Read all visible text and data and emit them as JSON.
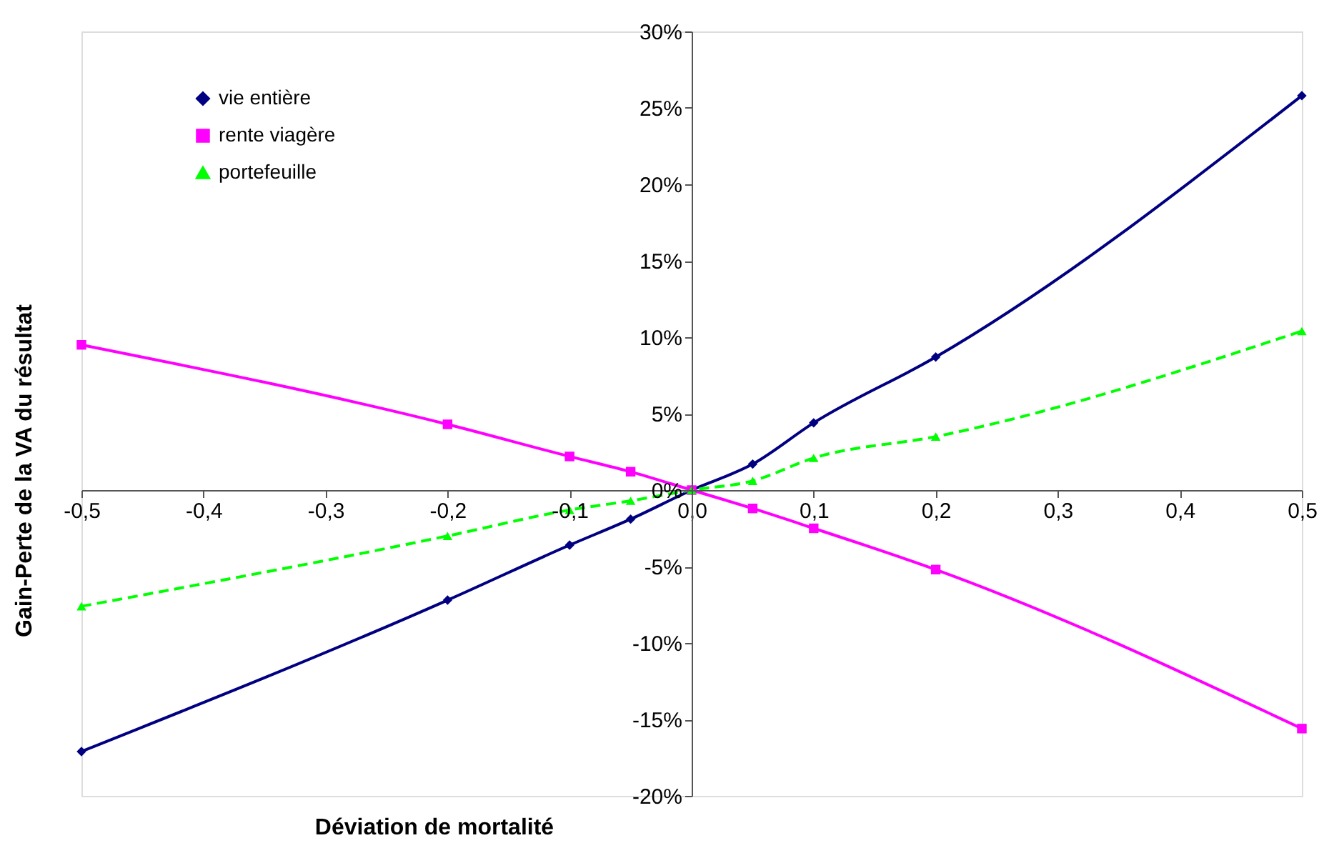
{
  "chart_data": {
    "type": "line",
    "xlabel": "Déviation de mortalité",
    "ylabel": "Gain-Perte de la VA du résultat",
    "x": [
      -0.5,
      -0.2,
      -0.1,
      -0.05,
      0,
      0.05,
      0.1,
      0.2,
      0.5
    ],
    "series": [
      {
        "name": "vie entière",
        "color": "#000080",
        "marker": "diamond",
        "line_style": "solid",
        "values": [
          -17.1,
          -7.2,
          -3.6,
          -1.9,
          0,
          1.7,
          4.4,
          8.7,
          25.8
        ]
      },
      {
        "name": "rente viagère",
        "color": "#ff00ff",
        "marker": "square",
        "line_style": "solid",
        "values": [
          9.5,
          4.3,
          2.2,
          1.2,
          0,
          -1.2,
          -2.5,
          -5.2,
          -15.6
        ]
      },
      {
        "name": "portefeuille",
        "color": "#00ff00",
        "marker": "triangle",
        "line_style": "dashed",
        "values": [
          -7.6,
          -3.0,
          -1.3,
          -0.7,
          0,
          0.6,
          2.1,
          3.5,
          10.4
        ]
      }
    ],
    "xlim": [
      -0.5,
      0.5
    ],
    "xticks": [
      {
        "value": -0.5,
        "label": "-0,5"
      },
      {
        "value": -0.4,
        "label": "-0,4"
      },
      {
        "value": -0.3,
        "label": "-0,3"
      },
      {
        "value": -0.2,
        "label": "-0,2"
      },
      {
        "value": -0.1,
        "label": "-0,1"
      },
      {
        "value": 0,
        "label": "0,0"
      },
      {
        "value": 0.1,
        "label": "0,1"
      },
      {
        "value": 0.2,
        "label": "0,2"
      },
      {
        "value": 0.3,
        "label": "0,3"
      },
      {
        "value": 0.4,
        "label": "0,4"
      },
      {
        "value": 0.5,
        "label": "0,5"
      }
    ],
    "ylim": [
      -20,
      30
    ],
    "yticks": [
      {
        "value": -20,
        "label": "-20%"
      },
      {
        "value": -15,
        "label": "-15%"
      },
      {
        "value": -10,
        "label": "-10%"
      },
      {
        "value": -5,
        "label": "-5%"
      },
      {
        "value": 0,
        "label": "0%"
      },
      {
        "value": 5,
        "label": "5%"
      },
      {
        "value": 10,
        "label": "10%"
      },
      {
        "value": 15,
        "label": "15%"
      },
      {
        "value": 20,
        "label": "20%"
      },
      {
        "value": 25,
        "label": "25%"
      },
      {
        "value": 30,
        "label": "30%"
      }
    ],
    "grid": false,
    "legend": "top left"
  }
}
